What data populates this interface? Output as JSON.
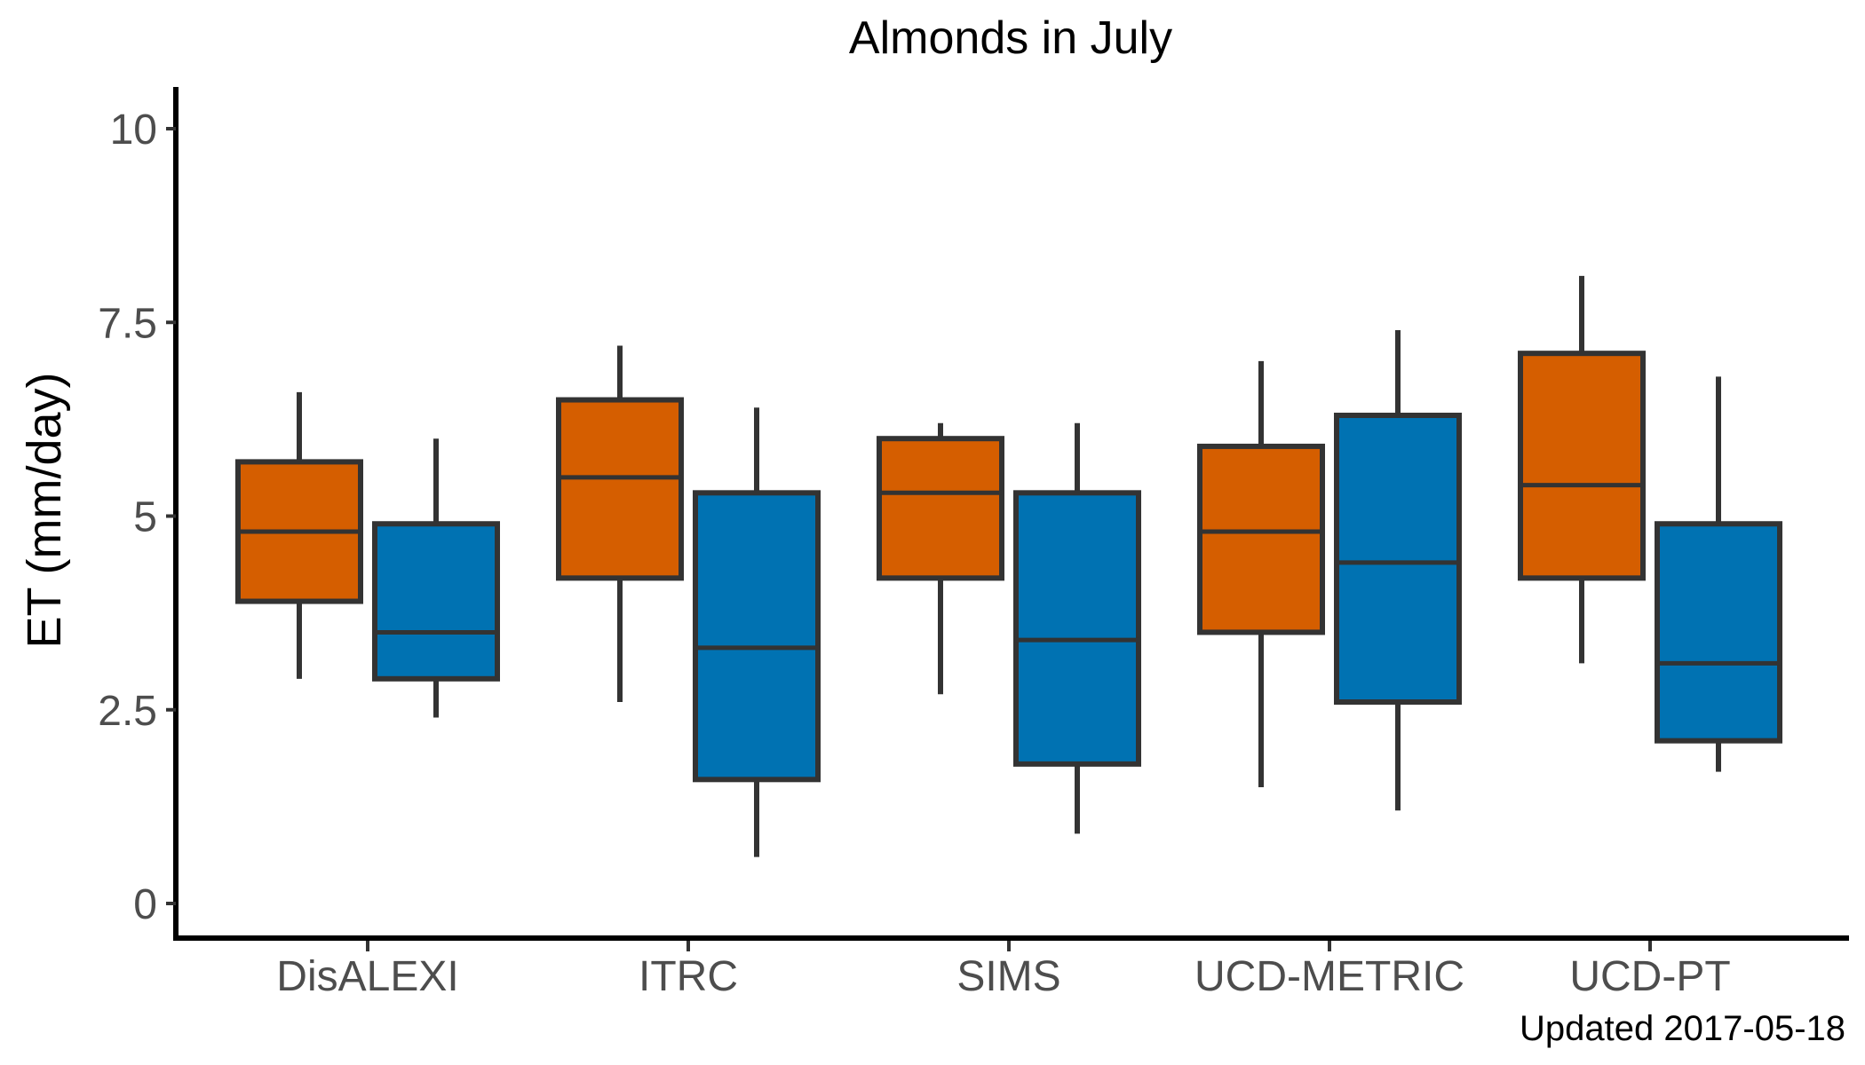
{
  "chart_data": {
    "type": "boxplot",
    "title": "Almonds in July",
    "xlabel": "",
    "ylabel": "ET (mm/day)",
    "ylim": [
      -0.5,
      10.5
    ],
    "yticks": [
      {
        "value": 0,
        "label": "0"
      },
      {
        "value": 2.5,
        "label": "2.5"
      },
      {
        "value": 5,
        "label": "5"
      },
      {
        "value": 7.5,
        "label": "7.5"
      },
      {
        "value": 10,
        "label": "10"
      }
    ],
    "categories": [
      "DisALEXI",
      "ITRC",
      "SIMS",
      "UCD-METRIC",
      "UCD-PT"
    ],
    "grid": false,
    "legend": "none",
    "colors": {
      "series1": "#D55E00",
      "series2": "#0072B2",
      "outline": "#333333"
    },
    "series": [
      {
        "color": "#D55E00",
        "boxes": [
          {
            "min": 2.9,
            "q1": 3.9,
            "median": 4.8,
            "q3": 5.7,
            "max": 6.6
          },
          {
            "min": 2.6,
            "q1": 4.2,
            "median": 5.5,
            "q3": 6.5,
            "max": 7.2
          },
          {
            "min": 2.7,
            "q1": 4.2,
            "median": 5.3,
            "q3": 6.0,
            "max": 6.2
          },
          {
            "min": 1.5,
            "q1": 3.5,
            "median": 4.8,
            "q3": 5.9,
            "max": 7.0
          },
          {
            "min": 3.1,
            "q1": 4.2,
            "median": 5.4,
            "q3": 7.1,
            "max": 8.1
          }
        ]
      },
      {
        "color": "#0072B2",
        "boxes": [
          {
            "min": 2.4,
            "q1": 2.9,
            "median": 3.5,
            "q3": 4.9,
            "max": 6.0
          },
          {
            "min": 0.6,
            "q1": 1.6,
            "median": 3.3,
            "q3": 5.3,
            "max": 6.4
          },
          {
            "min": 0.9,
            "q1": 1.8,
            "median": 3.4,
            "q3": 5.3,
            "max": 6.2
          },
          {
            "min": 1.2,
            "q1": 2.6,
            "median": 4.4,
            "q3": 6.3,
            "max": 7.4
          },
          {
            "min": 1.7,
            "q1": 2.1,
            "median": 3.1,
            "q3": 4.9,
            "max": 6.8
          }
        ]
      }
    ]
  },
  "caption": "Updated  2017-05-18"
}
